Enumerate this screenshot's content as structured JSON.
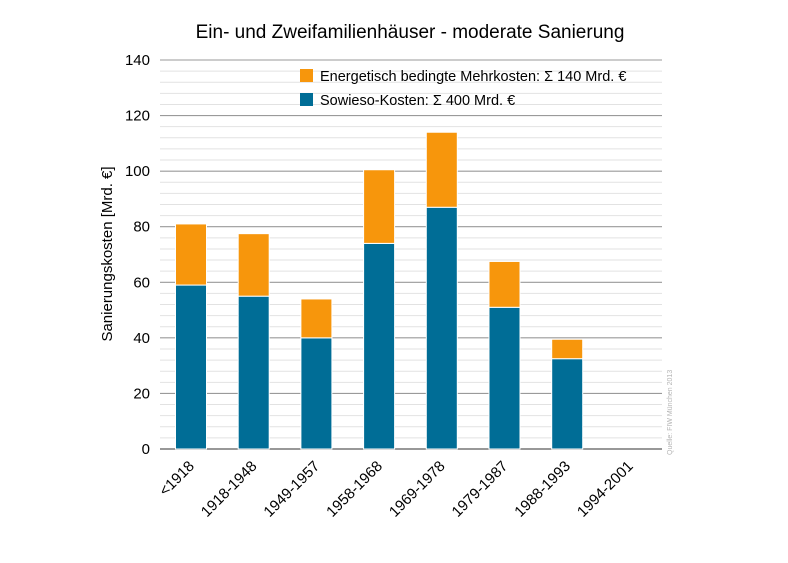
{
  "chart_data": {
    "type": "bar",
    "stacked": true,
    "title": "Ein- und Zweifamilienhäuser - moderate Sanierung",
    "xlabel": "",
    "ylabel": "Sanierungskosten [Mrd. €]",
    "ylim": [
      0,
      140
    ],
    "yticks": [
      0,
      20,
      40,
      60,
      80,
      100,
      120,
      140
    ],
    "grid": true,
    "legend_position": "top-right",
    "categories": [
      "<1918",
      "1918-1948",
      "1949-1957",
      "1958-1968",
      "1969-1978",
      "1979-1987",
      "1988-1993",
      "1994-2001"
    ],
    "series": [
      {
        "name": "Sowieso-Kosten: Σ 400 Mrd. €",
        "color": "#006d96",
        "values": [
          59,
          55,
          40,
          74,
          87,
          51,
          32.5,
          0
        ]
      },
      {
        "name": "Energetisch bedingte Mehrkosten: Σ 140 Mrd. €",
        "color": "#f7960c",
        "values": [
          22,
          22.5,
          14,
          26.5,
          27,
          16.5,
          7,
          0
        ]
      }
    ],
    "source_note": "Quelle: FIW München 2013"
  }
}
